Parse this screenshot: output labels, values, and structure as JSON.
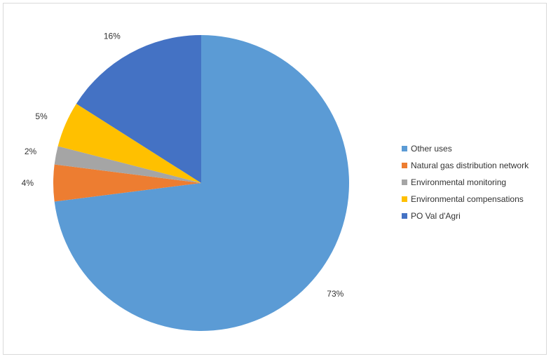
{
  "chart_data": {
    "type": "pie",
    "title": "",
    "legend_position": "right",
    "slices": [
      {
        "name": "Other uses",
        "value": 73,
        "label": "73%",
        "color": "#5B9BD5"
      },
      {
        "name": "Natural gas distribution network",
        "value": 4,
        "label": "4%",
        "color": "#ED7D31"
      },
      {
        "name": "Environmental monitoring",
        "value": 2,
        "label": "2%",
        "color": "#A5A5A5"
      },
      {
        "name": "Environmental compensations",
        "value": 5,
        "label": "5%",
        "color": "#FFC000"
      },
      {
        "name": "PO Val d'Agri",
        "value": 16,
        "label": "16%",
        "color": "#4472C4"
      }
    ]
  }
}
